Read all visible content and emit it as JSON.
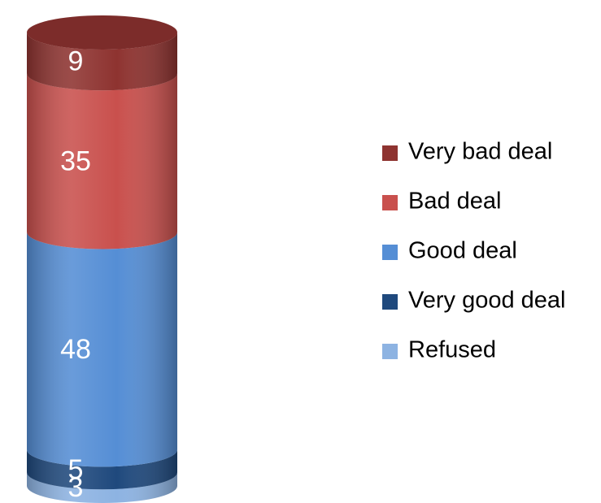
{
  "chart_data": {
    "type": "bar",
    "stacked": true,
    "series": [
      {
        "name": "Refused",
        "color": "#8db3e2",
        "values": [
          3
        ]
      },
      {
        "name": "Very good deal",
        "color": "#1f497d",
        "values": [
          5
        ]
      },
      {
        "name": "Good deal",
        "color": "#558ed5",
        "values": [
          48
        ]
      },
      {
        "name": "Bad deal",
        "color": "#c9504d",
        "values": [
          35
        ]
      },
      {
        "name": "Very bad deal",
        "color": "#8e3330",
        "values": [
          9
        ]
      }
    ],
    "legend": "right"
  }
}
